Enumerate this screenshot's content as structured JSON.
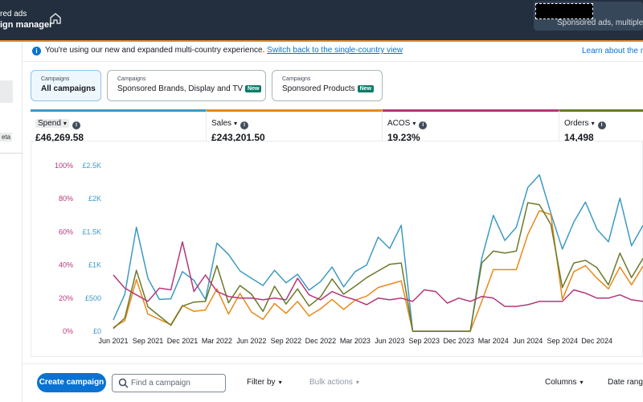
{
  "header": {
    "brand_line1": "red ads",
    "brand_line2": "ign manager",
    "account_text": "Sponsored ads, multiple cou"
  },
  "sidebar": {
    "beta_label": "eta"
  },
  "info_bar": {
    "message": "You're using our new and expanded multi-country experience.",
    "link": "Switch back to the single-country view",
    "learn_more": "Learn about the m"
  },
  "campaign_tabs": [
    {
      "label": "Campaigns",
      "value": "All campaigns",
      "badge": ""
    },
    {
      "label": "Campaigns",
      "value": "Sponsored Brands, Display and TV",
      "badge": "New"
    },
    {
      "label": "Campaigns",
      "value": "Sponsored Products",
      "badge": "New"
    }
  ],
  "metrics": [
    {
      "name": "Spend",
      "value": "£46,269.58",
      "color": "#3d9ac3"
    },
    {
      "name": "Sales",
      "value": "£243,201.50",
      "color": "#e8891a"
    },
    {
      "name": "ACOS",
      "value": "19.23%",
      "color": "#b7367a"
    },
    {
      "name": "Orders",
      "value": "14,498",
      "color": "#6a7a2a"
    }
  ],
  "toolbar": {
    "create_campaign": "Create campaign",
    "search_placeholder": "Find a campaign",
    "filter_by": "Filter by",
    "bulk_actions": "Bulk actions",
    "columns": "Columns",
    "date_range": "Date range"
  },
  "chart_data": {
    "type": "line",
    "x_labels": [
      "Jun 2021",
      "Sep 2021",
      "Dec 2021",
      "Mar 2022",
      "Jun 2022",
      "Sep 2022",
      "Dec 2022",
      "Mar 2023",
      "Jun 2023",
      "Sep 2023",
      "Dec 2023",
      "Mar 2024",
      "Jun 2024",
      "Sep 2024",
      "Dec 2024"
    ],
    "y_left_ticks": [
      "0%",
      "20%",
      "40%",
      "60%",
      "80%",
      "100%"
    ],
    "y_left_color": "#b7367a",
    "y_right_ticks": [
      "£0",
      "£500",
      "£1K",
      "£1.5K",
      "£2K",
      "£2.5K"
    ],
    "y_right_color": "#3d9ac3",
    "ylim": [
      0,
      2500
    ],
    "series": [
      {
        "name": "Spend",
        "color": "#3d9ac3",
        "values": [
          170,
          560,
          1570,
          800,
          480,
          490,
          900,
          770,
          480,
          1330,
          1160,
          910,
          800,
          690,
          920,
          730,
          860,
          620,
          750,
          970,
          670,
          900,
          1000,
          1420,
          1250,
          1600,
          0,
          0,
          0,
          0,
          0,
          0,
          1100,
          1750,
          1370,
          1570,
          2170,
          2360,
          1780,
          1240,
          1650,
          1950,
          1540,
          1350,
          2010,
          1290,
          1600
        ]
      },
      {
        "name": "Sales",
        "color": "#e8891a",
        "values": [
          60,
          160,
          780,
          260,
          180,
          100,
          390,
          300,
          320,
          640,
          260,
          570,
          290,
          180,
          420,
          270,
          450,
          230,
          340,
          480,
          330,
          470,
          530,
          660,
          710,
          760,
          0,
          0,
          0,
          0,
          0,
          0,
          450,
          930,
          930,
          930,
          1460,
          1820,
          1760,
          480,
          900,
          990,
          800,
          640,
          970,
          700,
          980
        ]
      },
      {
        "name": "Orders",
        "color": "#6a7a2a",
        "values": [
          40,
          200,
          920,
          370,
          230,
          90,
          380,
          440,
          450,
          990,
          430,
          690,
          560,
          300,
          680,
          410,
          640,
          380,
          520,
          790,
          560,
          680,
          810,
          910,
          1010,
          1030,
          0,
          0,
          0,
          0,
          0,
          0,
          1030,
          1210,
          1180,
          1210,
          1940,
          1910,
          1610,
          660,
          1030,
          1070,
          960,
          700,
          1180,
          810,
          1100
        ]
      },
      {
        "name": "ACOS",
        "color": "#b7367a",
        "values": [
          34,
          26,
          22,
          18,
          26,
          25,
          54,
          24,
          34,
          24,
          21,
          20,
          20,
          19,
          20,
          19,
          32,
          22,
          19,
          24,
          21,
          19,
          16,
          20,
          19,
          20,
          18,
          25,
          24,
          17,
          20,
          18,
          21,
          20,
          15,
          15,
          16,
          18,
          18,
          18,
          25,
          23,
          20,
          20,
          22,
          19,
          18
        ]
      }
    ]
  }
}
